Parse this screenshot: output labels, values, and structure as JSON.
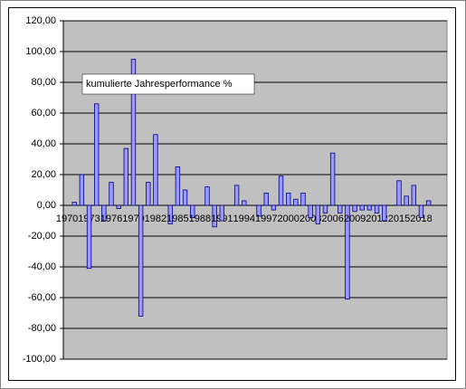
{
  "chart_data": {
    "type": "bar",
    "categories": [
      "1970",
      null,
      null,
      "1973",
      null,
      null,
      "1976",
      null,
      null,
      "1979",
      null,
      null,
      "1982",
      null,
      null,
      "1985",
      null,
      null,
      "1988",
      null,
      null,
      "1991",
      null,
      null,
      "1994",
      null,
      null,
      "1997",
      null,
      null,
      "2000",
      null,
      null,
      "2003",
      null,
      null,
      "2006",
      null,
      null,
      "2009",
      null,
      null,
      "2012",
      null,
      null,
      "2015",
      null,
      null,
      "2018",
      null,
      null,
      null
    ],
    "series": [
      {
        "name": "kumulierte Jahresperformance %",
        "color": "#9999ff",
        "values": [
          0,
          2,
          20,
          -41,
          66,
          -10,
          15,
          -2,
          37,
          95,
          -72,
          15,
          46,
          0,
          -12,
          25,
          10,
          -8,
          0,
          12,
          -14,
          -10,
          0,
          13,
          3,
          0,
          -7,
          8,
          -3,
          19,
          8,
          4,
          8,
          -8,
          -12,
          -5,
          34,
          -5,
          -61,
          -4,
          -3,
          -3,
          -5,
          -10,
          0,
          16,
          6,
          13,
          -8,
          3,
          0,
          null
        ]
      }
    ],
    "ylim": [
      -100,
      120
    ],
    "yticks": [
      {
        "value": -100,
        "label": "-100,00"
      },
      {
        "value": -80,
        "label": "-80,00"
      },
      {
        "value": -60,
        "label": "-60,00"
      },
      {
        "value": -40,
        "label": "-40,00"
      },
      {
        "value": -20,
        "label": "-20,00"
      },
      {
        "value": 0,
        "label": "0,00"
      },
      {
        "value": 20,
        "label": "20,00"
      },
      {
        "value": 40,
        "label": "40,00"
      },
      {
        "value": 60,
        "label": "60,00"
      },
      {
        "value": 80,
        "label": "80,00"
      },
      {
        "value": 100,
        "label": "100,00"
      },
      {
        "value": 120,
        "label": "120,00"
      }
    ],
    "grid": true
  }
}
